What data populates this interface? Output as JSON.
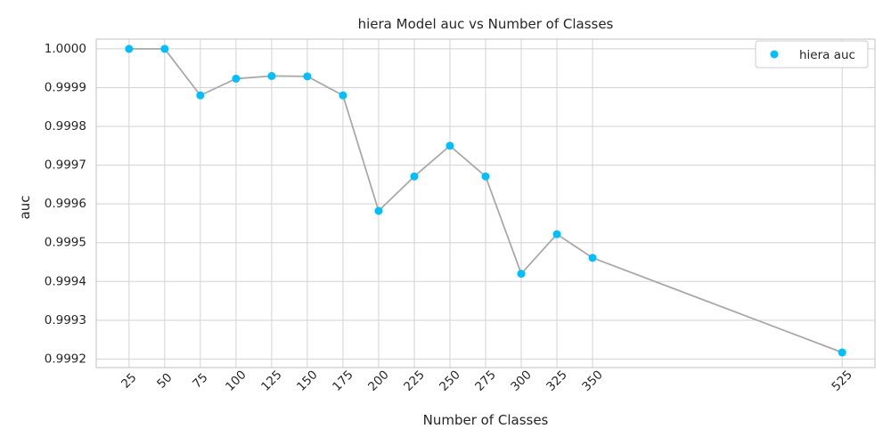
{
  "chart_data": {
    "type": "line",
    "title": "hiera Model auc vs Number of Classes",
    "xlabel": "Number of Classes",
    "ylabel": "auc",
    "x": [
      25,
      50,
      75,
      100,
      125,
      150,
      175,
      200,
      225,
      250,
      275,
      300,
      325,
      350,
      525
    ],
    "x_tick_labels": [
      "25",
      "50",
      "75",
      "100",
      "125",
      "150",
      "175",
      "200",
      "225",
      "250",
      "275",
      "300",
      "325",
      "350",
      "525"
    ],
    "series": [
      {
        "name": "hiera auc",
        "values": [
          1.0,
          1.0,
          0.99988,
          0.999923,
          0.99993,
          0.999929,
          0.99988,
          0.999582,
          0.999671,
          0.99975,
          0.999671,
          0.99942,
          0.999522,
          0.999461,
          0.999217
        ],
        "marker_color": "#00bfff",
        "line_color": "#a9a9a9"
      }
    ],
    "ylim": [
      0.999178,
      1.000025
    ],
    "y_ticks": [
      0.9992,
      0.9993,
      0.9994,
      0.9995,
      0.9996,
      0.9997,
      0.9998,
      0.9999,
      1.0
    ],
    "y_tick_labels": [
      "0.9992",
      "0.9993",
      "0.9994",
      "0.9995",
      "0.9996",
      "0.9997",
      "0.9998",
      "0.9999",
      "1.0000"
    ],
    "grid": true,
    "legend_position": "top-right"
  },
  "colors": {
    "grid": "#d3d3d3",
    "spine": "#cccccc",
    "background": "#ffffff"
  }
}
